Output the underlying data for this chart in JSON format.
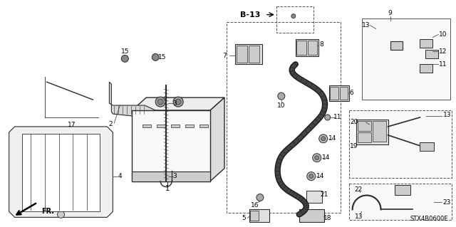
{
  "background_color": "#ffffff",
  "diagram_code": "STX4B0600E",
  "line_color": "#2a2a2a",
  "text_color": "#000000",
  "title_color": "#000000"
}
